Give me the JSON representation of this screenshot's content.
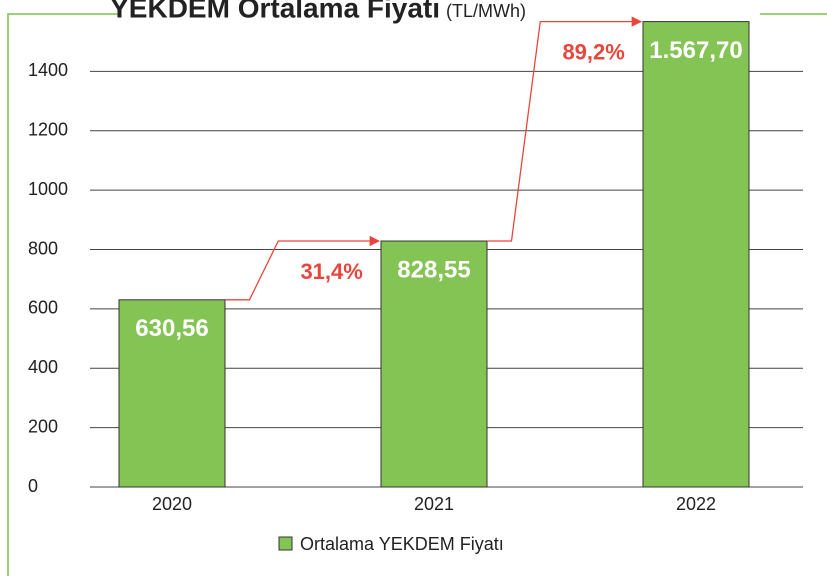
{
  "chart_data": {
    "type": "bar",
    "title": "YEKDEM Ortalama Fiyatı",
    "subtitle": "(TL/MWh)",
    "categories": [
      "2020",
      "2021",
      "2022"
    ],
    "series": [
      {
        "name": "Ortalama YEKDEM Fiyatı",
        "color": "#84c455",
        "values": [
          630.56,
          828.55,
          1567.7
        ],
        "value_labels": [
          "630,56",
          "828,55",
          "1.567,70"
        ]
      }
    ],
    "annotations": [
      "31,4%",
      "89,2%"
    ],
    "ylim": [
      0,
      1600
    ],
    "yticks": [
      0,
      200,
      400,
      600,
      800,
      1000,
      1200,
      1400
    ],
    "grid": true
  }
}
